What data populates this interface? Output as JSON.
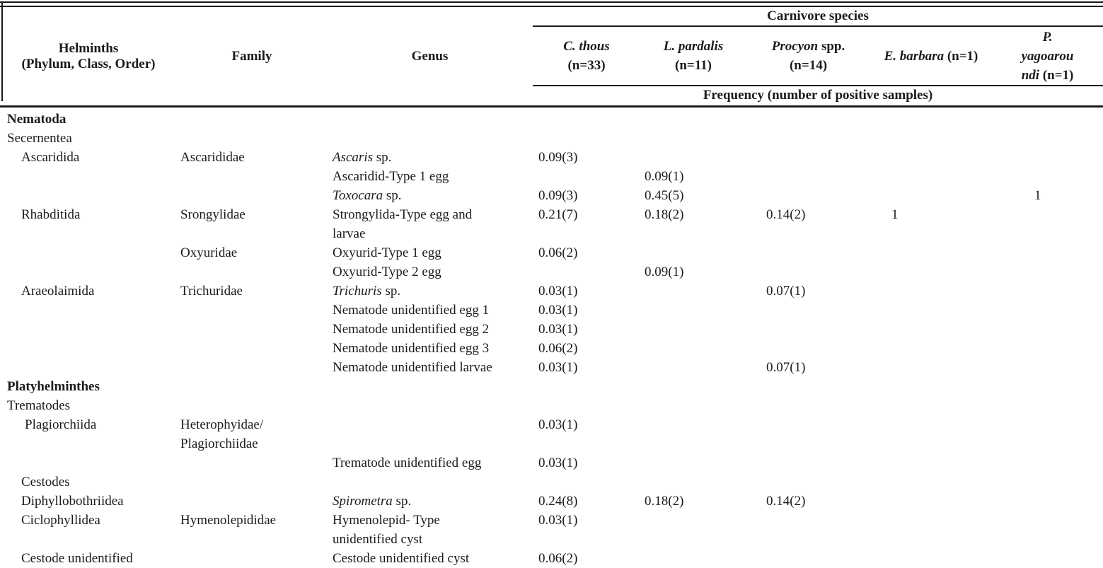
{
  "page": {
    "background": "#ffffff",
    "text_color": "#1b1b1b",
    "rule_color": "#1b1b1b"
  },
  "table": {
    "header": {
      "helminths_line1": "Helminths",
      "helminths_line2": "(Phylum, Class, Order)",
      "family": "Family",
      "genus": "Genus",
      "carnivore_group": "Carnivore species",
      "frequency_label": "Frequency (number of positive samples)",
      "species": [
        {
          "key": "c-thous",
          "lines": [
            [
              {
                "t": "C. thous",
                "i": true
              }
            ],
            [
              {
                "t": "(n=33)"
              }
            ]
          ]
        },
        {
          "key": "l-pardalis",
          "lines": [
            [
              {
                "t": "L. pardalis",
                "i": true
              }
            ],
            [
              {
                "t": "(n=11)"
              }
            ]
          ]
        },
        {
          "key": "procyon-spp",
          "lines": [
            [
              {
                "t": "Procyon",
                "i": true
              },
              {
                "t": " spp."
              }
            ],
            [
              {
                "t": "(n=14)"
              }
            ]
          ]
        },
        {
          "key": "e-barbara",
          "lines": [
            [
              {
                "t": "E. barbara",
                "i": true
              },
              {
                "t": " (n=1)"
              }
            ]
          ]
        },
        {
          "key": "p-yagoaroundi",
          "lines": [
            [
              {
                "t": "P.",
                "i": true
              }
            ],
            [
              {
                "t": "yagoarou",
                "i": true
              }
            ],
            [
              {
                "t": "ndi",
                "i": true
              },
              {
                "t": " (n=1)"
              }
            ]
          ]
        }
      ]
    },
    "rows": [
      {
        "helminth": "Nematoda",
        "bold": true,
        "indent": 0,
        "family": "",
        "genus": "",
        "values": [
          "",
          "",
          "",
          "",
          ""
        ]
      },
      {
        "helminth": "Secernentea",
        "indent": 0,
        "family": "",
        "genus": "",
        "values": [
          "",
          "",
          "",
          "",
          ""
        ]
      },
      {
        "helminth": "Ascaridida",
        "indent": 1,
        "family": "Ascarididae",
        "genus": {
          "lines": [
            [
              {
                "t": "Ascaris",
                "i": true
              },
              {
                "t": " sp."
              }
            ]
          ]
        },
        "values": [
          "0.09(3)",
          "",
          "",
          "",
          ""
        ]
      },
      {
        "helminth": "",
        "family": "",
        "genus": "Ascaridid-Type 1 egg",
        "values": [
          "",
          "0.09(1)",
          "",
          "",
          ""
        ]
      },
      {
        "helminth": "",
        "family": "",
        "genus": {
          "lines": [
            [
              {
                "t": "Toxocara",
                "i": true
              },
              {
                "t": " sp."
              }
            ]
          ]
        },
        "values": [
          "0.09(3)",
          "0.45(5)",
          "",
          "",
          "1"
        ]
      },
      {
        "helminth": "Rhabditida",
        "indent": 1,
        "family": "Srongylidae",
        "genus": {
          "lines": [
            "Strongylida-Type egg and",
            "larvae"
          ]
        },
        "values": [
          "0.21(7)",
          "0.18(2)",
          "0.14(2)",
          "1",
          ""
        ]
      },
      {
        "helminth": "",
        "family": "Oxyuridae",
        "genus": "Oxyurid-Type 1 egg",
        "values": [
          "0.06(2)",
          "",
          "",
          "",
          ""
        ]
      },
      {
        "helminth": "",
        "family": "",
        "genus": "Oxyurid-Type 2 egg",
        "values": [
          "",
          "0.09(1)",
          "",
          "",
          ""
        ]
      },
      {
        "helminth": "Araeolaimida",
        "indent": 1,
        "family": "Trichuridae",
        "genus": {
          "lines": [
            [
              {
                "t": "Trichuris",
                "i": true
              },
              {
                "t": " sp."
              }
            ]
          ]
        },
        "values": [
          "0.03(1)",
          "",
          "0.07(1)",
          "",
          ""
        ]
      },
      {
        "helminth": "",
        "family": "",
        "genus": "Nematode unidentified egg 1",
        "values": [
          "0.03(1)",
          "",
          "",
          "",
          ""
        ]
      },
      {
        "helminth": "",
        "family": "",
        "genus": "Nematode unidentified egg 2",
        "values": [
          "0.03(1)",
          "",
          "",
          "",
          ""
        ]
      },
      {
        "helminth": "",
        "family": "",
        "genus": "Nematode unidentified egg 3",
        "values": [
          "0.06(2)",
          "",
          "",
          "",
          ""
        ]
      },
      {
        "helminth": "",
        "family": "",
        "genus": "Nematode unidentified larvae",
        "values": [
          "0.03(1)",
          "",
          "0.07(1)",
          "",
          ""
        ]
      },
      {
        "helminth": "Platyhelminthes",
        "bold": true,
        "indent": 0,
        "family": "",
        "genus": "",
        "values": [
          "",
          "",
          "",
          "",
          ""
        ]
      },
      {
        "helminth": "Trematodes",
        "indent": 0,
        "family": "",
        "genus": "",
        "values": [
          "",
          "",
          "",
          "",
          ""
        ]
      },
      {
        "helminth": "Plagiorchiida",
        "indent": 2,
        "family": {
          "lines": [
            "Heterophyidae/",
            "Plagiorchiidae"
          ]
        },
        "genus": "",
        "values": [
          "0.03(1)",
          "",
          "",
          "",
          ""
        ]
      },
      {
        "helminth": "",
        "family": "",
        "genus": "Trematode unidentified egg",
        "values": [
          "0.03(1)",
          "",
          "",
          "",
          ""
        ]
      },
      {
        "helminth": "Cestodes",
        "indent": 1,
        "family": "",
        "genus": "",
        "values": [
          "",
          "",
          "",
          "",
          ""
        ]
      },
      {
        "helminth": "Diphyllobothriidea",
        "indent": 1,
        "family": "",
        "genus": {
          "lines": [
            [
              {
                "t": "Spirometra",
                "i": true
              },
              {
                "t": " sp."
              }
            ]
          ]
        },
        "values": [
          "0.24(8)",
          "0.18(2)",
          "0.14(2)",
          "",
          ""
        ]
      },
      {
        "helminth": "Ciclophyllidea",
        "indent": 1,
        "family": "Hymenolepididae",
        "genus": {
          "lines": [
            "Hymenolepid- Type",
            "unidentified cyst"
          ]
        },
        "values": [
          "0.03(1)",
          "",
          "",
          "",
          ""
        ]
      },
      {
        "helminth": "Cestode unidentified",
        "indent": 1,
        "family": "",
        "genus": "Cestode unidentified cyst",
        "values": [
          "0.06(2)",
          "",
          "",
          "",
          ""
        ]
      }
    ]
  }
}
